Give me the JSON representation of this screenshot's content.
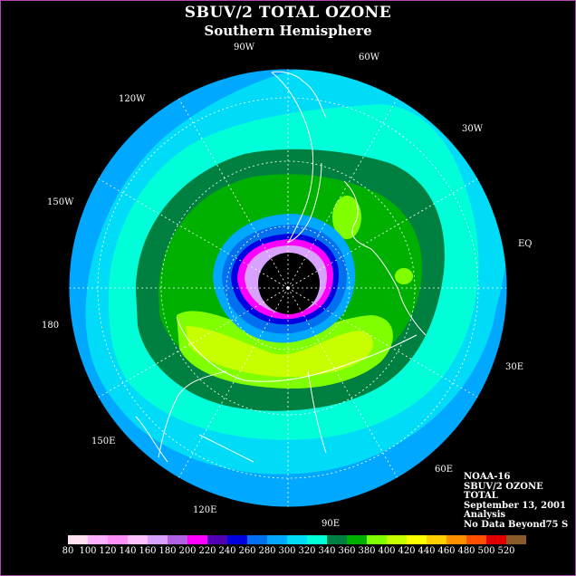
{
  "title": "SBUV/2 TOTAL OZONE",
  "subtitle": "Southern Hemisphere",
  "longitude_labels": [
    {
      "id": "90w",
      "text": "90W"
    },
    {
      "id": "60w",
      "text": "60W"
    },
    {
      "id": "120w",
      "text": "120W"
    },
    {
      "id": "30w",
      "text": "30W"
    },
    {
      "id": "150w",
      "text": "150W"
    },
    {
      "id": "eq",
      "text": "EQ"
    },
    {
      "id": "180",
      "text": "180"
    },
    {
      "id": "30e",
      "text": "30E"
    },
    {
      "id": "150e",
      "text": "150E"
    },
    {
      "id": "60e",
      "text": "60E"
    },
    {
      "id": "120e",
      "text": "120E"
    },
    {
      "id": "90e",
      "text": "90E"
    }
  ],
  "info": {
    "satellite": "NOAA-16",
    "instrument": "SBUV/2 OZONE",
    "product": "TOTAL",
    "date": "September 13, 2001",
    "type": "Analysis",
    "note": "No Data Beyond75 S"
  },
  "colorbar": {
    "ticks": [
      "80",
      "100",
      "120",
      "140",
      "160",
      "180",
      "200",
      "220",
      "240",
      "260",
      "280",
      "300",
      "320",
      "340",
      "360",
      "380",
      "400",
      "420",
      "440",
      "460",
      "480",
      "500",
      "520"
    ],
    "colors": [
      "#ffe0f0",
      "#ffb0ff",
      "#ff90f8",
      "#ffc0ff",
      "#d8a0ff",
      "#b060e0",
      "#ff00ff",
      "#5000b0",
      "#0000e0",
      "#0070f0",
      "#00a8ff",
      "#00dcf8",
      "#00ffd8",
      "#008040",
      "#00b000",
      "#80ff00",
      "#c8ff00",
      "#ffff00",
      "#ffd000",
      "#ff9000",
      "#ff5000",
      "#e00000",
      "#8b5a2b"
    ]
  }
}
